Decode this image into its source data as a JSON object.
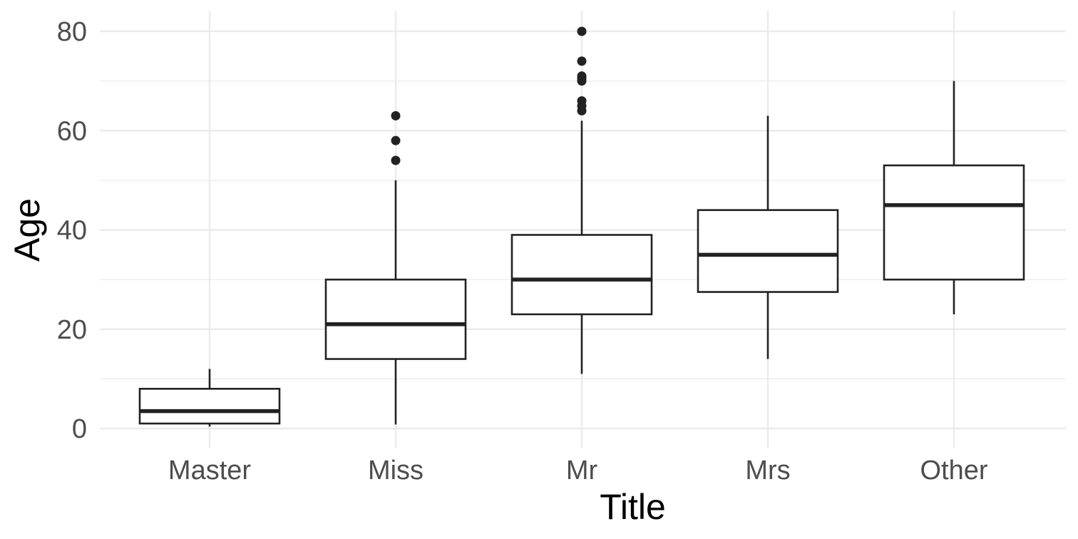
{
  "chart_data": {
    "type": "boxplot",
    "title": "",
    "xlabel": "Title",
    "ylabel": "Age",
    "ylim": [
      -2,
      84
    ],
    "yticks": [
      0,
      20,
      40,
      60,
      80
    ],
    "yticks_minor": [
      10,
      30,
      50,
      70
    ],
    "grid": true,
    "categories": [
      "Master",
      "Miss",
      "Mr",
      "Mrs",
      "Other"
    ],
    "boxes": [
      {
        "category": "Master",
        "whisker_low": 0.4,
        "q1": 1,
        "median": 3.5,
        "q3": 8,
        "whisker_high": 12,
        "outliers": []
      },
      {
        "category": "Miss",
        "whisker_low": 0.8,
        "q1": 14,
        "median": 21,
        "q3": 30,
        "whisker_high": 50,
        "outliers": [
          54,
          58,
          63
        ]
      },
      {
        "category": "Mr",
        "whisker_low": 11,
        "q1": 23,
        "median": 30,
        "q3": 39,
        "whisker_high": 62,
        "outliers": [
          64,
          65,
          66,
          70,
          70.5,
          71,
          74,
          80
        ]
      },
      {
        "category": "Mrs",
        "whisker_low": 14,
        "q1": 27.5,
        "median": 35,
        "q3": 44,
        "whisker_high": 63,
        "outliers": []
      },
      {
        "category": "Other",
        "whisker_low": 23,
        "q1": 30,
        "median": 45,
        "q3": 53,
        "whisker_high": 70,
        "outliers": []
      }
    ]
  }
}
